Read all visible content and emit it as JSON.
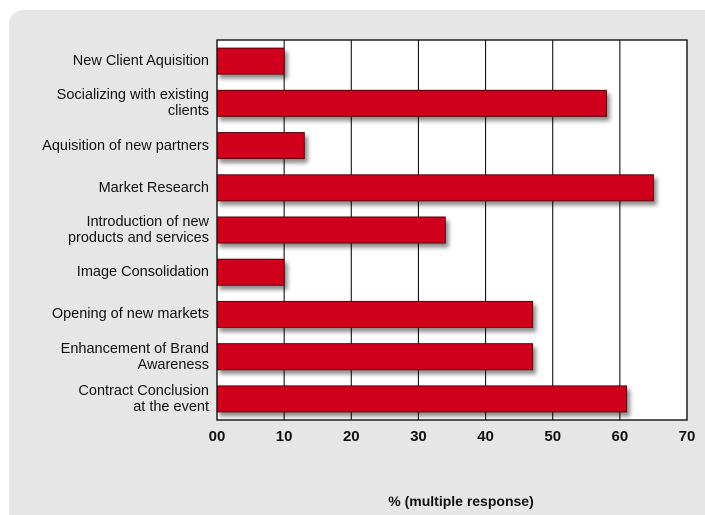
{
  "chart_data": {
    "type": "bar",
    "orientation": "horizontal",
    "categories": [
      "New Client Aquisition",
      "Socializing with existing\nclients",
      "Aquisition of new partners",
      "Market Research",
      "Introduction of new\nproducts and services",
      "Image Consolidation",
      "Opening of new markets",
      "Enhancement of Brand\nAwareness",
      "Contract Conclusion\nat the event"
    ],
    "values": [
      10,
      58,
      13,
      65,
      34,
      10,
      47,
      47,
      61
    ],
    "x_ticks": [
      "00",
      "10",
      "20",
      "30",
      "40",
      "50",
      "60",
      "70"
    ],
    "xlim": [
      0,
      70
    ],
    "xlabel": "% (multiple response)",
    "title": "",
    "grid": true,
    "colors": {
      "bar": "#d0021b",
      "bar_edge": "#5a0008",
      "plot_bg": "#ffffff",
      "card_bg": "#e6e6e6"
    }
  }
}
